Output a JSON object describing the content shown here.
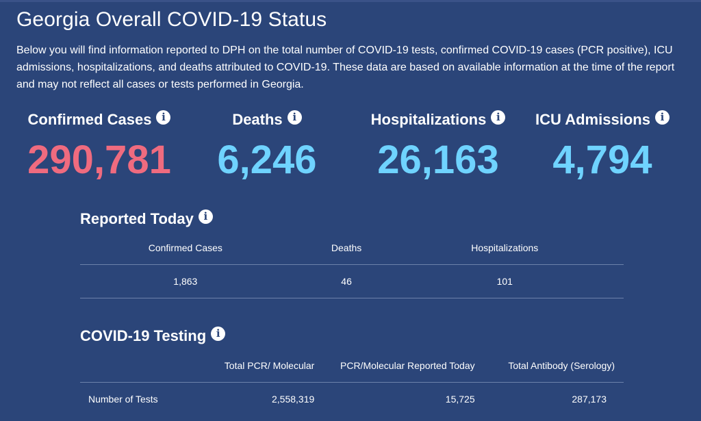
{
  "page": {
    "title": "Georgia Overall COVID-19 Status",
    "intro": "Below you will find information reported to DPH on the total number of COVID-19 tests, confirmed COVID-19 cases (PCR positive), ICU admissions, hospitalizations, and deaths attributed to COVID-19. These data are based on available information at the time of the report and may not reflect all cases or tests performed in Georgia."
  },
  "info_symbol": "i",
  "stats": [
    {
      "label": "Confirmed Cases",
      "value": "290,781",
      "color": "#ef6b7f"
    },
    {
      "label": "Deaths",
      "value": "6,246",
      "color": "#6fd3ff"
    },
    {
      "label": "Hospitalizations",
      "value": "26,163",
      "color": "#6fd3ff"
    },
    {
      "label": "ICU Admissions",
      "value": "4,794",
      "color": "#6fd3ff"
    }
  ],
  "reported_today": {
    "title": "Reported Today",
    "headers": [
      "Confirmed Cases",
      "Deaths",
      "Hospitalizations"
    ],
    "values": [
      "1,863",
      "46",
      "101"
    ]
  },
  "testing": {
    "title": "COVID-19 Testing",
    "headers": [
      "Total PCR/ Molecular",
      "PCR/Molecular Reported Today",
      "Total Antibody (Serology)"
    ],
    "row_label": "Number of Tests",
    "values": [
      "2,558,319",
      "15,725",
      "287,173"
    ]
  },
  "colors": {
    "background": "#2b4579",
    "confirmed": "#ef6b7f",
    "other": "#6fd3ff",
    "divider": "#6d82ab"
  }
}
